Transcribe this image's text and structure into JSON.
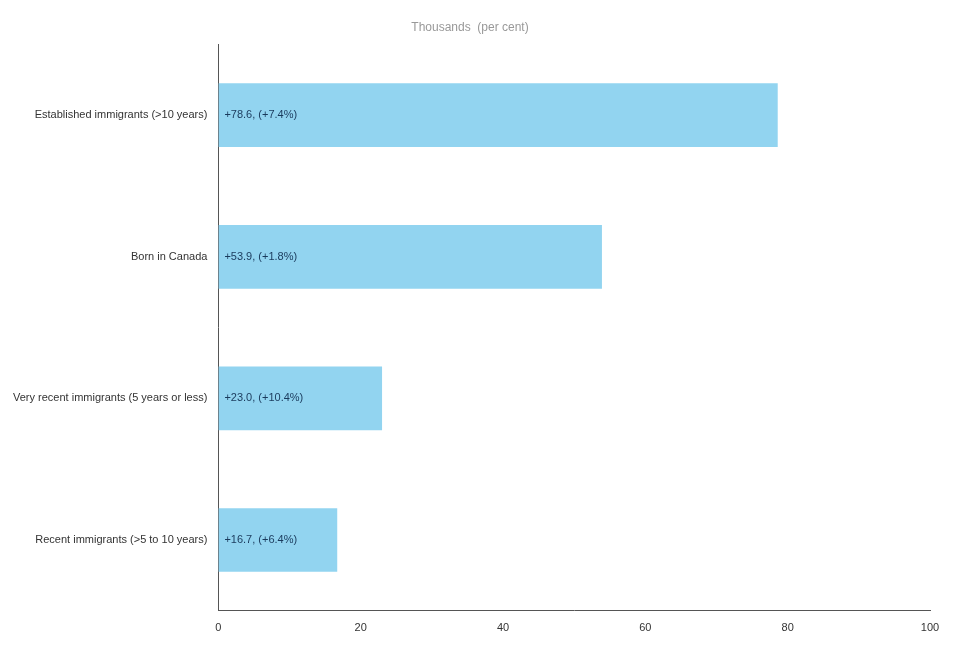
{
  "chart_data": {
    "type": "bar",
    "orientation": "horizontal",
    "title": "Thousands  (per cent)",
    "categories": [
      "Recent immigrants (>5 to 10 years)",
      "Very recent immigrants (5 years or less)",
      "Born in Canada",
      "Established immigrants (>10 years)"
    ],
    "values": [
      16.7,
      23.0,
      53.9,
      78.6
    ],
    "value_labels": [
      "+16.7, (+6.4%)",
      "+23.0, (+10.4%)",
      "+53.9, (+1.8%)",
      "+78.6, (+7.4%)"
    ],
    "data_labels": true,
    "color": "#92D4F0",
    "xlim": [
      0,
      100
    ],
    "xticks": [
      0,
      20,
      40,
      60,
      80,
      100
    ],
    "grid": false
  }
}
